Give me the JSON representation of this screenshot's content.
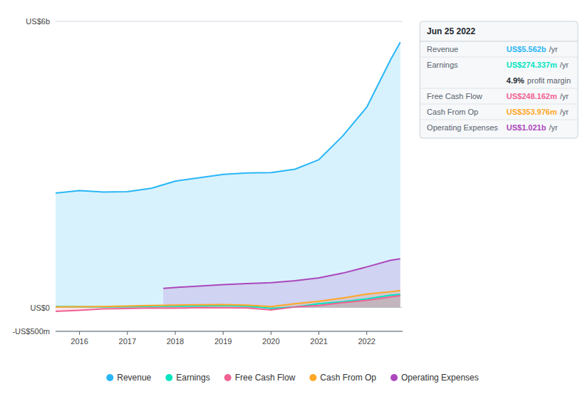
{
  "chart_data": {
    "type": "area",
    "xlim": [
      2015.5,
      2022.75
    ],
    "xticks": [
      2016,
      2017,
      2018,
      2019,
      2020,
      2021,
      2022
    ],
    "ylim": [
      -500000000,
      6000000000
    ],
    "yticks": [
      {
        "value": -500000000,
        "label": "-US$500m"
      },
      {
        "value": 0,
        "label": "US$0"
      },
      {
        "value": 6000000000,
        "label": "US$6b"
      }
    ],
    "grid": true,
    "legend": "bottom",
    "series": [
      {
        "name": "Revenue",
        "color": "#29b6f6",
        "x": [
          2015.5,
          2016.0,
          2016.5,
          2017.0,
          2017.5,
          2018.0,
          2018.5,
          2019.0,
          2019.5,
          2020.0,
          2020.5,
          2021.0,
          2021.5,
          2022.0,
          2022.5,
          2022.7
        ],
        "values": [
          2400000000,
          2450000000,
          2420000000,
          2430000000,
          2500000000,
          2650000000,
          2720000000,
          2790000000,
          2820000000,
          2830000000,
          2900000000,
          3100000000,
          3600000000,
          4200000000,
          5200000000,
          5562000000
        ]
      },
      {
        "name": "Earnings",
        "color": "#00e5c0",
        "x": [
          2015.5,
          2016.0,
          2016.5,
          2017.0,
          2017.5,
          2018.0,
          2018.5,
          2019.0,
          2019.5,
          2020.0,
          2020.5,
          2021.0,
          2021.5,
          2022.0,
          2022.5,
          2022.7
        ],
        "values": [
          20000000,
          15000000,
          10000000,
          18000000,
          25000000,
          30000000,
          35000000,
          40000000,
          30000000,
          -20000000,
          10000000,
          80000000,
          120000000,
          180000000,
          260000000,
          274000000
        ]
      },
      {
        "name": "Free Cash Flow",
        "color": "#f06292",
        "x": [
          2015.5,
          2016.0,
          2016.5,
          2017.0,
          2017.5,
          2018.0,
          2018.5,
          2019.0,
          2019.5,
          2020.0,
          2020.5,
          2021.0,
          2021.5,
          2022.0,
          2022.5,
          2022.7
        ],
        "values": [
          -80000000,
          -60000000,
          -30000000,
          -20000000,
          -10000000,
          -15000000,
          -5000000,
          -8000000,
          -10000000,
          -50000000,
          10000000,
          40000000,
          100000000,
          150000000,
          220000000,
          248000000
        ]
      },
      {
        "name": "Cash From Op",
        "color": "#ffa726",
        "x": [
          2015.5,
          2016.0,
          2016.5,
          2017.0,
          2017.5,
          2018.0,
          2018.5,
          2019.0,
          2019.5,
          2020.0,
          2020.5,
          2021.0,
          2021.5,
          2022.0,
          2022.5,
          2022.7
        ],
        "values": [
          10000000,
          15000000,
          20000000,
          30000000,
          40000000,
          50000000,
          55000000,
          60000000,
          50000000,
          20000000,
          80000000,
          130000000,
          200000000,
          280000000,
          330000000,
          354000000
        ]
      },
      {
        "name": "Operating Expenses",
        "color": "#ab47bc",
        "x": [
          2017.75,
          2018.0,
          2018.5,
          2019.0,
          2019.5,
          2020.0,
          2020.5,
          2021.0,
          2021.5,
          2022.0,
          2022.5,
          2022.7
        ],
        "values": [
          400000000,
          420000000,
          450000000,
          480000000,
          500000000,
          520000000,
          560000000,
          620000000,
          720000000,
          850000000,
          990000000,
          1021000000
        ]
      }
    ],
    "annotations": [
      {
        "text": "Jun 25 2022"
      },
      {
        "label": "Revenue",
        "text": "US$5.562b",
        "unit": "/yr",
        "color": "#29b6f6"
      },
      {
        "label": "Earnings",
        "text": "US$274.337m",
        "unit": "/yr",
        "color": "#00e5c0"
      },
      {
        "text": "4.9%",
        "unit": "profit margin"
      },
      {
        "label": "Free Cash Flow",
        "text": "US$248.162m",
        "unit": "/yr",
        "color": "#f06292"
      },
      {
        "label": "Cash From Op",
        "text": "US$353.976m",
        "unit": "/yr",
        "color": "#ffa726"
      },
      {
        "label": "Operating Expenses",
        "text": "US$1.021b",
        "unit": "/yr",
        "color": "#ab47bc"
      }
    ]
  }
}
